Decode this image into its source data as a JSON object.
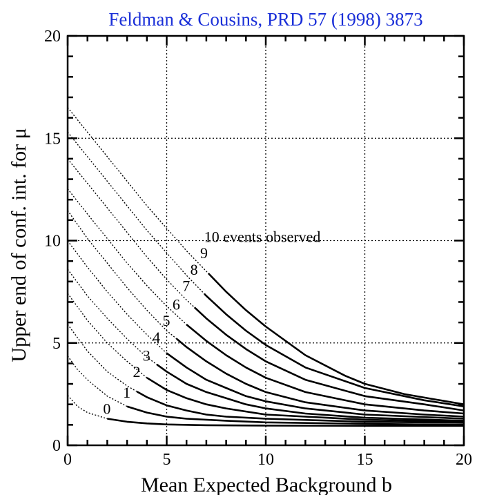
{
  "caption": "Feldman & Cousins, PRD 57 (1998) 3873",
  "chart_data": {
    "type": "line",
    "title": "",
    "xlabel": "Mean Expected Background b",
    "ylabel": "Upper end of conf. int. for μ",
    "xlim": [
      0,
      20
    ],
    "ylim": [
      0,
      20
    ],
    "xticks": [
      {
        "value": 0,
        "label": "0"
      },
      {
        "value": 5,
        "label": "5"
      },
      {
        "value": 10,
        "label": "10"
      },
      {
        "value": 15,
        "label": "15"
      },
      {
        "value": 20,
        "label": "20"
      }
    ],
    "yticks": [
      {
        "value": 0,
        "label": "0"
      },
      {
        "value": 5,
        "label": "5"
      },
      {
        "value": 10,
        "label": "10"
      },
      {
        "value": 15,
        "label": "15"
      },
      {
        "value": 20,
        "label": "20"
      }
    ],
    "grid": true,
    "series": [
      {
        "n": 0,
        "label": "0",
        "label_at": [
          2.0,
          1.6
        ],
        "points": [
          [
            0,
            2.44
          ],
          [
            0.5,
            1.9
          ],
          [
            1,
            1.6
          ],
          [
            2,
            1.3
          ],
          [
            3,
            1.15
          ],
          [
            4,
            1.07
          ],
          [
            5,
            1.02
          ],
          [
            7,
            0.98
          ],
          [
            10,
            0.96
          ],
          [
            15,
            0.95
          ],
          [
            20,
            0.95
          ]
        ]
      },
      {
        "n": 1,
        "label": "1",
        "label_at": [
          3.0,
          2.4
        ],
        "points": [
          [
            0,
            4.36
          ],
          [
            0.5,
            3.7
          ],
          [
            1,
            3.2
          ],
          [
            2,
            2.4
          ],
          [
            3,
            1.9
          ],
          [
            4,
            1.6
          ],
          [
            5,
            1.4
          ],
          [
            6,
            1.3
          ],
          [
            8,
            1.2
          ],
          [
            10,
            1.12
          ],
          [
            15,
            1.05
          ],
          [
            20,
            1.0
          ]
        ]
      },
      {
        "n": 2,
        "label": "2",
        "label_at": [
          3.5,
          3.4
        ],
        "points": [
          [
            0,
            5.91
          ],
          [
            1,
            4.6
          ],
          [
            2,
            3.6
          ],
          [
            3,
            2.9
          ],
          [
            4,
            2.35
          ],
          [
            5,
            1.95
          ],
          [
            6,
            1.7
          ],
          [
            7,
            1.5
          ],
          [
            8,
            1.4
          ],
          [
            10,
            1.3
          ],
          [
            15,
            1.15
          ],
          [
            20,
            1.1
          ]
        ]
      },
      {
        "n": 3,
        "label": "3",
        "label_at": [
          4.0,
          4.2
        ],
        "points": [
          [
            0,
            7.42
          ],
          [
            1,
            6.1
          ],
          [
            2,
            5.0
          ],
          [
            3,
            4.1
          ],
          [
            4,
            3.3
          ],
          [
            5,
            2.7
          ],
          [
            6,
            2.3
          ],
          [
            7,
            2.0
          ],
          [
            8,
            1.8
          ],
          [
            10,
            1.5
          ],
          [
            15,
            1.25
          ],
          [
            20,
            1.15
          ]
        ]
      },
      {
        "n": 4,
        "label": "4",
        "label_at": [
          4.5,
          5.1
        ],
        "points": [
          [
            0,
            8.6
          ],
          [
            1,
            7.3
          ],
          [
            2,
            6.2
          ],
          [
            3,
            5.2
          ],
          [
            4,
            4.3
          ],
          [
            5,
            3.6
          ],
          [
            6,
            3.0
          ],
          [
            7,
            2.6
          ],
          [
            8,
            2.3
          ],
          [
            9,
            2.0
          ],
          [
            10,
            1.8
          ],
          [
            12,
            1.55
          ],
          [
            15,
            1.35
          ],
          [
            20,
            1.2
          ]
        ]
      },
      {
        "n": 5,
        "label": "5",
        "label_at": [
          5.0,
          5.9
        ],
        "points": [
          [
            0,
            9.99
          ],
          [
            1,
            8.7
          ],
          [
            2,
            7.5
          ],
          [
            3,
            6.4
          ],
          [
            4,
            5.4
          ],
          [
            5,
            4.5
          ],
          [
            6,
            3.8
          ],
          [
            7,
            3.2
          ],
          [
            8,
            2.8
          ],
          [
            9,
            2.4
          ],
          [
            10,
            2.15
          ],
          [
            12,
            1.8
          ],
          [
            15,
            1.5
          ],
          [
            20,
            1.3
          ]
        ]
      },
      {
        "n": 6,
        "label": "6",
        "label_at": [
          5.5,
          6.7
        ],
        "points": [
          [
            0,
            11.47
          ],
          [
            1,
            10.1
          ],
          [
            2,
            8.9
          ],
          [
            3,
            7.7
          ],
          [
            4,
            6.6
          ],
          [
            5,
            5.6
          ],
          [
            6,
            4.8
          ],
          [
            7,
            4.1
          ],
          [
            8,
            3.5
          ],
          [
            9,
            3.0
          ],
          [
            10,
            2.6
          ],
          [
            12,
            2.1
          ],
          [
            15,
            1.7
          ],
          [
            18,
            1.5
          ],
          [
            20,
            1.4
          ]
        ]
      },
      {
        "n": 7,
        "label": "7",
        "label_at": [
          6.0,
          7.6
        ],
        "points": [
          [
            0,
            12.53
          ],
          [
            1,
            11.3
          ],
          [
            2,
            10.1
          ],
          [
            3,
            8.9
          ],
          [
            4,
            7.8
          ],
          [
            5,
            6.8
          ],
          [
            6,
            5.9
          ],
          [
            7,
            5.1
          ],
          [
            8,
            4.4
          ],
          [
            9,
            3.8
          ],
          [
            10,
            3.3
          ],
          [
            12,
            2.6
          ],
          [
            15,
            2.0
          ],
          [
            18,
            1.7
          ],
          [
            20,
            1.55
          ]
        ]
      },
      {
        "n": 8,
        "label": "8",
        "label_at": [
          6.4,
          8.4
        ],
        "points": [
          [
            0,
            13.99
          ],
          [
            1,
            12.8
          ],
          [
            2,
            11.6
          ],
          [
            3,
            10.4
          ],
          [
            4,
            9.2
          ],
          [
            5,
            8.1
          ],
          [
            6,
            7.1
          ],
          [
            7,
            6.2
          ],
          [
            8,
            5.4
          ],
          [
            9,
            4.7
          ],
          [
            10,
            4.1
          ],
          [
            12,
            3.2
          ],
          [
            15,
            2.4
          ],
          [
            18,
            2.0
          ],
          [
            20,
            1.7
          ]
        ]
      },
      {
        "n": 9,
        "label": "9",
        "label_at": [
          6.9,
          9.2
        ],
        "points": [
          [
            0,
            15.3
          ],
          [
            1,
            14.1
          ],
          [
            2,
            12.9
          ],
          [
            3,
            11.7
          ],
          [
            4,
            10.5
          ],
          [
            5,
            9.4
          ],
          [
            6,
            8.3
          ],
          [
            7,
            7.3
          ],
          [
            8,
            6.4
          ],
          [
            9,
            5.6
          ],
          [
            10,
            4.9
          ],
          [
            12,
            3.8
          ],
          [
            15,
            2.8
          ],
          [
            18,
            2.2
          ],
          [
            20,
            1.9
          ]
        ]
      },
      {
        "n": 10,
        "label": "10 events observed",
        "label_at": [
          7.1,
          10.0
        ],
        "points": [
          [
            0,
            16.5
          ],
          [
            1,
            15.3
          ],
          [
            2,
            14.1
          ],
          [
            3,
            12.9
          ],
          [
            4,
            11.7
          ],
          [
            5,
            10.6
          ],
          [
            6,
            9.5
          ],
          [
            7,
            8.5
          ],
          [
            8,
            7.5
          ],
          [
            9,
            6.6
          ],
          [
            10,
            5.8
          ],
          [
            12,
            4.4
          ],
          [
            14,
            3.4
          ],
          [
            15,
            3.0
          ],
          [
            17,
            2.5
          ],
          [
            20,
            2.0
          ]
        ]
      }
    ]
  }
}
